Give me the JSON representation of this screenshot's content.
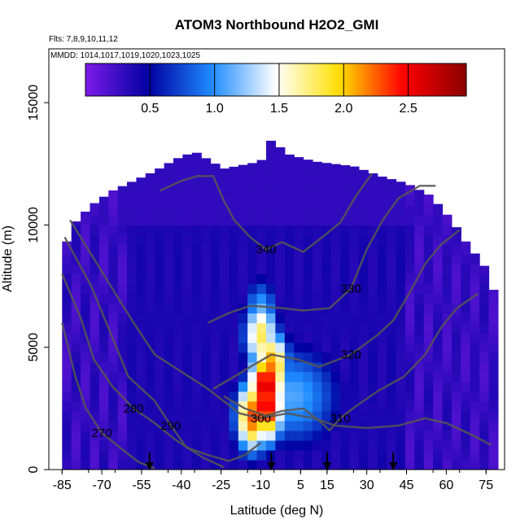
{
  "chart_data": {
    "type": "heatmap",
    "title": "ATOM3 Northbound H2O2_GMI",
    "subtitle_flights": "Flts: 7,8,9,10,11,12",
    "subtitle_dates": "MMDD: 1014,1017,1019,1020,1023,1025",
    "xlabel": "Latitude (deg N)",
    "ylabel": "Altitude (m)",
    "xlim": [
      -90,
      82
    ],
    "ylim": [
      0,
      17200
    ],
    "xticks": [
      -85,
      -70,
      -55,
      -40,
      -25,
      -10,
      5,
      15,
      30,
      45,
      60,
      75
    ],
    "yticks": [
      0,
      5000,
      10000,
      15000
    ],
    "colorbar": {
      "min": 0,
      "max": 2.95,
      "ticks": [
        0.5,
        1.0,
        1.5,
        2.0,
        2.5
      ],
      "tick_labels": [
        "0.5",
        "1.0",
        "1.5",
        "2.0",
        "2.5"
      ],
      "colors": [
        "#7B1BE8",
        "#0000A0",
        "#1E8CFF",
        "#FFFFFF",
        "#FFE000",
        "#FF0000",
        "#8B0000"
      ]
    },
    "data_extent": {
      "lat_range": [
        -85,
        79
      ],
      "alt_top_by_lat": [
        [
          -85,
          8800
        ],
        [
          -81,
          10000
        ],
        [
          -74,
          10800
        ],
        [
          -66,
          11400
        ],
        [
          -58,
          11800
        ],
        [
          -50,
          12200
        ],
        [
          -42,
          12700
        ],
        [
          -35,
          13000
        ],
        [
          -24,
          12300
        ],
        [
          -10,
          12600
        ],
        [
          -6,
          13500
        ],
        [
          0,
          12900
        ],
        [
          10,
          12600
        ],
        [
          25,
          12400
        ],
        [
          35,
          12000
        ],
        [
          45,
          11700
        ],
        [
          54,
          11200
        ],
        [
          62,
          10200
        ],
        [
          68,
          9200
        ],
        [
          74,
          8400
        ],
        [
          79,
          7000
        ]
      ]
    },
    "high_values": [
      {
        "lat": -8,
        "alt": 3400,
        "value": 2.7
      },
      {
        "lat": -8,
        "alt": 2600,
        "value": 2.6
      },
      {
        "lat": -13,
        "alt": 2200,
        "value": 2.3
      },
      {
        "lat": -6,
        "alt": 4200,
        "value": 2.2
      },
      {
        "lat": -10,
        "alt": 5500,
        "value": 1.8
      },
      {
        "lat": -10,
        "alt": 6300,
        "value": 1.2
      }
    ],
    "contours": [
      {
        "label": "270",
        "points": [
          [
            -85,
            6000
          ],
          [
            -80,
            3800
          ],
          [
            -76,
            2500
          ],
          [
            -70,
            1500
          ],
          [
            -62,
            800
          ],
          [
            -56,
            300
          ],
          [
            -50,
            50
          ]
        ]
      },
      {
        "label": "280",
        "points": [
          [
            -85,
            8000
          ],
          [
            -78,
            6200
          ],
          [
            -73,
            4500
          ],
          [
            -66,
            3400
          ],
          [
            -58,
            2500
          ],
          [
            -50,
            1900
          ],
          [
            -42,
            1200
          ],
          [
            -32,
            500
          ],
          [
            -24,
            100
          ]
        ]
      },
      {
        "label": "290",
        "points": [
          [
            -84,
            9500
          ],
          [
            -74,
            7500
          ],
          [
            -66,
            5400
          ],
          [
            -60,
            3800
          ],
          [
            -50,
            2800
          ],
          [
            -44,
            1800
          ],
          [
            -38,
            900
          ],
          [
            -30,
            600
          ],
          [
            -22,
            350
          ],
          [
            -16,
            600
          ],
          [
            -10,
            1100
          ]
        ]
      },
      {
        "label": "300",
        "points": [
          [
            -82,
            10200
          ],
          [
            -74,
            8800
          ],
          [
            -66,
            7400
          ],
          [
            -58,
            6000
          ],
          [
            -50,
            4700
          ],
          [
            -40,
            4000
          ],
          [
            -30,
            3300
          ],
          [
            -24,
            2800
          ],
          [
            -18,
            2300
          ],
          [
            -10,
            2100
          ],
          [
            0,
            2300
          ],
          [
            10,
            2100
          ],
          [
            18,
            1800
          ],
          [
            30,
            1700
          ],
          [
            42,
            1800
          ],
          [
            52,
            2100
          ],
          [
            60,
            1900
          ],
          [
            70,
            1400
          ],
          [
            77,
            1000
          ]
        ]
      },
      {
        "label": "310",
        "points": [
          [
            -24,
            3000
          ],
          [
            -16,
            2500
          ],
          [
            -8,
            2200
          ],
          [
            -2,
            2400
          ],
          [
            6,
            2500
          ],
          [
            12,
            2000
          ],
          [
            16,
            1600
          ],
          [
            20,
            2100
          ],
          [
            26,
            2600
          ],
          [
            34,
            3200
          ],
          [
            44,
            3800
          ],
          [
            52,
            4700
          ],
          [
            58,
            5800
          ],
          [
            64,
            6600
          ],
          [
            72,
            7200
          ]
        ]
      },
      {
        "label": "320",
        "points": [
          [
            -28,
            3300
          ],
          [
            -20,
            3800
          ],
          [
            -14,
            4200
          ],
          [
            -6,
            4700
          ],
          [
            4,
            4500
          ],
          [
            12,
            4200
          ],
          [
            24,
            4700
          ],
          [
            34,
            5500
          ],
          [
            40,
            6100
          ],
          [
            46,
            7200
          ],
          [
            52,
            8400
          ],
          [
            58,
            9200
          ],
          [
            65,
            9800
          ]
        ]
      },
      {
        "label": "330",
        "points": [
          [
            -30,
            6000
          ],
          [
            -22,
            6400
          ],
          [
            -14,
            6700
          ],
          [
            -2,
            6600
          ],
          [
            6,
            6500
          ],
          [
            16,
            6600
          ],
          [
            24,
            7400
          ],
          [
            30,
            9000
          ],
          [
            36,
            10200
          ],
          [
            42,
            11100
          ],
          [
            50,
            11600
          ],
          [
            56,
            11600
          ]
        ]
      },
      {
        "label": "340",
        "points": [
          [
            -48,
            11400
          ],
          [
            -40,
            11800
          ],
          [
            -34,
            12000
          ],
          [
            -28,
            12000
          ],
          [
            -24,
            11000
          ],
          [
            -20,
            10200
          ],
          [
            -14,
            9500
          ],
          [
            -8,
            9000
          ],
          [
            -2,
            9300
          ],
          [
            6,
            8900
          ],
          [
            12,
            9400
          ],
          [
            20,
            10100
          ],
          [
            26,
            11200
          ],
          [
            32,
            12100
          ]
        ]
      }
    ],
    "arrows_lat": [
      -52,
      -6,
      15,
      40
    ]
  }
}
